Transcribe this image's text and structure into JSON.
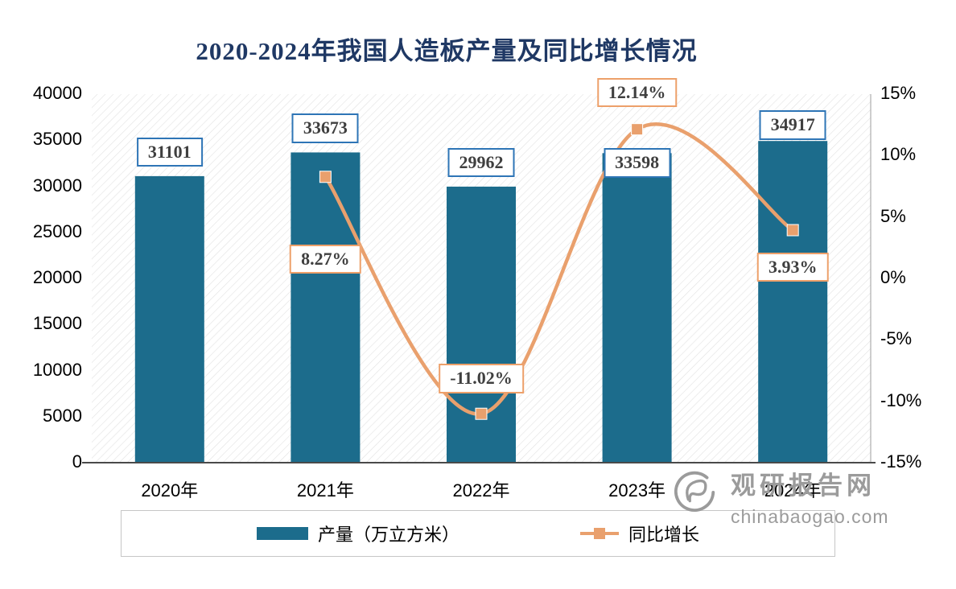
{
  "title": "2020-2024年我国人造板产量及同比增长情况",
  "watermark": {
    "name": "观研报告网",
    "site": "chinabaogao.com"
  },
  "chart_data": {
    "type": "bar+line",
    "title": "2020-2024年我国人造板产量及同比增长情况",
    "categories": [
      "2020年",
      "2021年",
      "2022年",
      "2023年",
      "2024年"
    ],
    "series": [
      {
        "name": "产量（万立方米）",
        "type": "bar",
        "axis": "left",
        "color": "#1C6C8C",
        "values": [
          31101,
          33673,
          29962,
          33598,
          34917
        ],
        "labels": [
          "31101",
          "33673",
          "29962",
          "33598",
          "34917"
        ]
      },
      {
        "name": "同比增长",
        "type": "line",
        "axis": "right",
        "color": "#E9A06D",
        "values": [
          null,
          8.27,
          -11.02,
          12.14,
          3.93
        ],
        "labels": [
          null,
          "8.27%",
          "-11.02%",
          "12.14%",
          "3.93%"
        ],
        "label_side": [
          null,
          "below",
          "above",
          "above",
          "below"
        ]
      }
    ],
    "left_axis": {
      "min": 0,
      "max": 40000,
      "ticks": [
        "0",
        "5000",
        "10000",
        "15000",
        "20000",
        "25000",
        "30000",
        "35000",
        "40000"
      ]
    },
    "right_axis": {
      "min": -15,
      "max": 15,
      "ticks": [
        "-15%",
        "-10%",
        "-5%",
        "0%",
        "5%",
        "10%",
        "15%"
      ]
    },
    "layout": {
      "legend_position": "bottom",
      "grid": false,
      "plot_background": "diagonal-hatch",
      "bar_label_dy": [
        0,
        0,
        0,
        42,
        10
      ],
      "line_label_dy": [
        0,
        68,
        -10,
        -12,
        12
      ],
      "label_border_colors": {
        "bar": "#2E75B6",
        "line": "#EDA06A"
      }
    }
  }
}
